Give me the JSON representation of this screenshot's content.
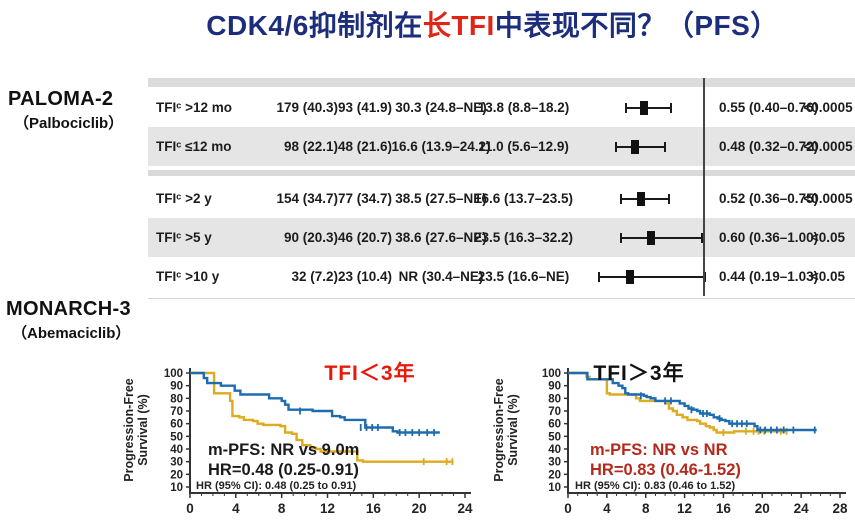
{
  "page": {
    "title_prefix": "CDK4/6抑制剂在",
    "title_highlight": "长TFI",
    "title_suffix": "中表现不同？（PFS）"
  },
  "studies": [
    {
      "name": "PALOMA-2",
      "drug": "（Palbociclib）"
    },
    {
      "name": "MONARCH-3",
      "drug": "（Abemaciclib）"
    }
  ],
  "colors": {
    "title_navy": "#1c2e7b",
    "highlight_red": "#e02415",
    "km_blue": "#1e6cb0",
    "km_yellow": "#dcab1e",
    "row_shade": "#e5e5e5",
    "annotation_red": "#b3291c",
    "chart_title_red": "#e8190b"
  },
  "chart_data": [
    {
      "type": "table",
      "subtype": "forest-plot",
      "ref_value": 1.0,
      "rows": [
        {
          "label": "TFIᶜ >12 mo",
          "n1": "179 (40.3)",
          "n2": "93 (41.9)",
          "m1": "30.3 (24.8–NE)",
          "m2": "13.8 (8.8–18.2)",
          "hr": 0.55,
          "lo": 0.4,
          "hi": 0.76,
          "hr_text": "0.55 (0.40–0.76)",
          "p": "<0.0005"
        },
        {
          "label": "TFIᶜ ≤12 mo",
          "n1": "98 (22.1)",
          "n2": "48 (21.6)",
          "m1": "16.6 (13.9–24.2)",
          "m2": "11.0 (5.6–12.9)",
          "hr": 0.48,
          "lo": 0.32,
          "hi": 0.72,
          "hr_text": "0.48 (0.32–0.72)",
          "p": "<0.0005"
        },
        {
          "label": "TFIᶜ >2 y",
          "n1": "154 (34.7)",
          "n2": "77 (34.7)",
          "m1": "38.5 (27.5–NE)",
          "m2": "16.6 (13.7–23.5)",
          "hr": 0.52,
          "lo": 0.36,
          "hi": 0.75,
          "hr_text": "0.52 (0.36–0.75)",
          "p": "<0.0005"
        },
        {
          "label": "TFIᶜ >5 y",
          "n1": "90 (20.3)",
          "n2": "46 (20.7)",
          "m1": "38.6 (27.6–NE)",
          "m2": "23.5 (16.3–32.2)",
          "hr": 0.6,
          "lo": 0.36,
          "hi": 1.0,
          "hr_text": "0.60 (0.36–1.00)",
          "p": "<0.05"
        },
        {
          "label": "TFIᶜ >10 y",
          "n1": "32 (7.2)",
          "n2": "23 (10.4)",
          "m1": "NR (30.4–NE)",
          "m2": "23.5 (16.6–NE)",
          "hr": 0.44,
          "lo": 0.19,
          "hi": 1.03,
          "hr_text": "0.44 (0.19–1.03)",
          "p": "<0.05"
        }
      ]
    },
    {
      "type": "line",
      "subtype": "kaplan-meier",
      "title": "TFI＜3年",
      "title_color": "#e8190b",
      "ylabel_line1": "Progression-Free",
      "ylabel_line2": "Survival (%)",
      "xticks": [
        0,
        4,
        8,
        12,
        16,
        20,
        24
      ],
      "xmax": 24,
      "yticks": [
        10,
        20,
        30,
        40,
        50,
        60,
        70,
        80,
        90,
        100
      ],
      "annotation_line1": "m-PFS: NR vs 9.0m",
      "annotation_line2": "HR=0.48 (0.25-0.91)",
      "annotation_color": "#1a1a1a",
      "footnote": "HR (95% CI): 0.48 (0.25 to 0.91)",
      "series": [
        {
          "name": "yellow-arm",
          "color": "#dcab1e",
          "steps": [
            [
              0,
              100
            ],
            [
              1.9,
              100
            ],
            [
              2.1,
              84
            ],
            [
              3.3,
              84
            ],
            [
              3.5,
              78
            ],
            [
              3.7,
              66
            ],
            [
              4.3,
              65
            ],
            [
              4.7,
              63
            ],
            [
              5.5,
              62
            ],
            [
              5.9,
              60
            ],
            [
              6.4,
              59
            ],
            [
              7.9,
              58
            ],
            [
              8.3,
              53
            ],
            [
              8.9,
              52
            ],
            [
              9.3,
              47
            ],
            [
              9.8,
              43
            ],
            [
              10.5,
              41
            ],
            [
              11.0,
              40
            ],
            [
              11.4,
              38
            ],
            [
              14.2,
              38
            ],
            [
              14.6,
              31
            ],
            [
              15.1,
              30
            ],
            [
              23.0,
              30
            ]
          ],
          "censors": [
            [
              20.4,
              30
            ],
            [
              22.4,
              30
            ],
            [
              22.9,
              30
            ]
          ]
        },
        {
          "name": "blue-arm",
          "color": "#1e6cb0",
          "steps": [
            [
              0,
              100
            ],
            [
              1.2,
              96
            ],
            [
              1.5,
              92
            ],
            [
              2.4,
              92
            ],
            [
              2.7,
              90
            ],
            [
              3.6,
              90
            ],
            [
              3.9,
              86
            ],
            [
              4.4,
              83
            ],
            [
              6.6,
              83
            ],
            [
              6.9,
              80
            ],
            [
              7.7,
              80
            ],
            [
              8.0,
              78
            ],
            [
              8.3,
              75
            ],
            [
              8.6,
              71
            ],
            [
              10.4,
              71
            ],
            [
              10.7,
              70
            ],
            [
              12.0,
              70
            ],
            [
              12.4,
              66
            ],
            [
              13.1,
              65
            ],
            [
              13.5,
              63
            ],
            [
              14.9,
              63
            ],
            [
              15.3,
              57
            ],
            [
              17.4,
              57
            ],
            [
              17.7,
              54
            ],
            [
              18.1,
              53
            ],
            [
              21.8,
              53
            ]
          ],
          "censors": [
            [
              9.6,
              70
            ],
            [
              14.9,
              57
            ],
            [
              15.4,
              57
            ],
            [
              15.9,
              57
            ],
            [
              16.4,
              57
            ],
            [
              18.3,
              53
            ],
            [
              18.8,
              53
            ],
            [
              19.4,
              53
            ],
            [
              20.0,
              53
            ],
            [
              20.7,
              53
            ],
            [
              21.3,
              53
            ]
          ]
        }
      ]
    },
    {
      "type": "line",
      "subtype": "kaplan-meier",
      "title": "TFI＞3年",
      "title_color": "#111111",
      "ylabel_line1": "Progression-Free",
      "ylabel_line2": "Survival (%)",
      "xticks": [
        0,
        4,
        8,
        12,
        16,
        20,
        24,
        28
      ],
      "xmax": 28,
      "yticks": [
        10,
        20,
        30,
        40,
        50,
        60,
        70,
        80,
        90,
        100
      ],
      "annotation_line1": "m-PFS: NR vs NR",
      "annotation_line2": "HR=0.83 (0.46-1.52)",
      "annotation_color": "#b3291c",
      "footnote": "HR (95% CI): 0.83 (0.46 to 1.52)",
      "series": [
        {
          "name": "yellow-arm",
          "color": "#dcab1e",
          "steps": [
            [
              0,
              100
            ],
            [
              1.7,
              100
            ],
            [
              1.9,
              97
            ],
            [
              2.2,
              95
            ],
            [
              3.7,
              95
            ],
            [
              4.0,
              84
            ],
            [
              4.3,
              83
            ],
            [
              6.7,
              83
            ],
            [
              7.0,
              80
            ],
            [
              7.4,
              78
            ],
            [
              9.7,
              78
            ],
            [
              10.0,
              76
            ],
            [
              10.4,
              72
            ],
            [
              10.8,
              70
            ],
            [
              11.2,
              67
            ],
            [
              11.8,
              65
            ],
            [
              12.3,
              63
            ],
            [
              13.3,
              62
            ],
            [
              13.6,
              60
            ],
            [
              14.2,
              58
            ],
            [
              14.6,
              57
            ],
            [
              15.0,
              55
            ],
            [
              15.3,
              53
            ],
            [
              16.8,
              53
            ],
            [
              17.1,
              54
            ],
            [
              22.6,
              54
            ]
          ],
          "censors": [
            [
              16.0,
              53
            ],
            [
              18.3,
              54
            ],
            [
              19.1,
              54
            ],
            [
              19.6,
              54
            ],
            [
              20.2,
              54
            ],
            [
              21.9,
              54
            ],
            [
              22.5,
              54
            ]
          ]
        },
        {
          "name": "blue-arm",
          "color": "#1e6cb0",
          "steps": [
            [
              0,
              100
            ],
            [
              1.7,
              100
            ],
            [
              2.0,
              95
            ],
            [
              4.3,
              95
            ],
            [
              4.6,
              92
            ],
            [
              5.2,
              90
            ],
            [
              5.6,
              88
            ],
            [
              5.9,
              84
            ],
            [
              6.2,
              83
            ],
            [
              7.8,
              82
            ],
            [
              8.1,
              81
            ],
            [
              8.5,
              80
            ],
            [
              9.0,
              78
            ],
            [
              11.2,
              78
            ],
            [
              11.5,
              76
            ],
            [
              12.0,
              74
            ],
            [
              12.4,
              72
            ],
            [
              12.9,
              71
            ],
            [
              13.3,
              70
            ],
            [
              13.6,
              68
            ],
            [
              14.6,
              67
            ],
            [
              15.0,
              65
            ],
            [
              15.4,
              64
            ],
            [
              15.8,
              63
            ],
            [
              16.2,
              62
            ],
            [
              16.6,
              60
            ],
            [
              18.8,
              60
            ],
            [
              19.2,
              58
            ],
            [
              19.5,
              55
            ],
            [
              25.6,
              55
            ]
          ],
          "censors": [
            [
              7.5,
              82
            ],
            [
              10.0,
              78
            ],
            [
              10.6,
              78
            ],
            [
              12.7,
              71
            ],
            [
              13.9,
              68
            ],
            [
              14.3,
              68
            ],
            [
              15.6,
              64
            ],
            [
              16.9,
              60
            ],
            [
              17.4,
              60
            ],
            [
              17.9,
              60
            ],
            [
              18.4,
              60
            ],
            [
              19.8,
              55
            ],
            [
              20.3,
              55
            ],
            [
              20.9,
              55
            ],
            [
              21.5,
              55
            ],
            [
              22.2,
              55
            ],
            [
              23.2,
              55
            ],
            [
              25.4,
              55
            ]
          ]
        }
      ]
    }
  ]
}
